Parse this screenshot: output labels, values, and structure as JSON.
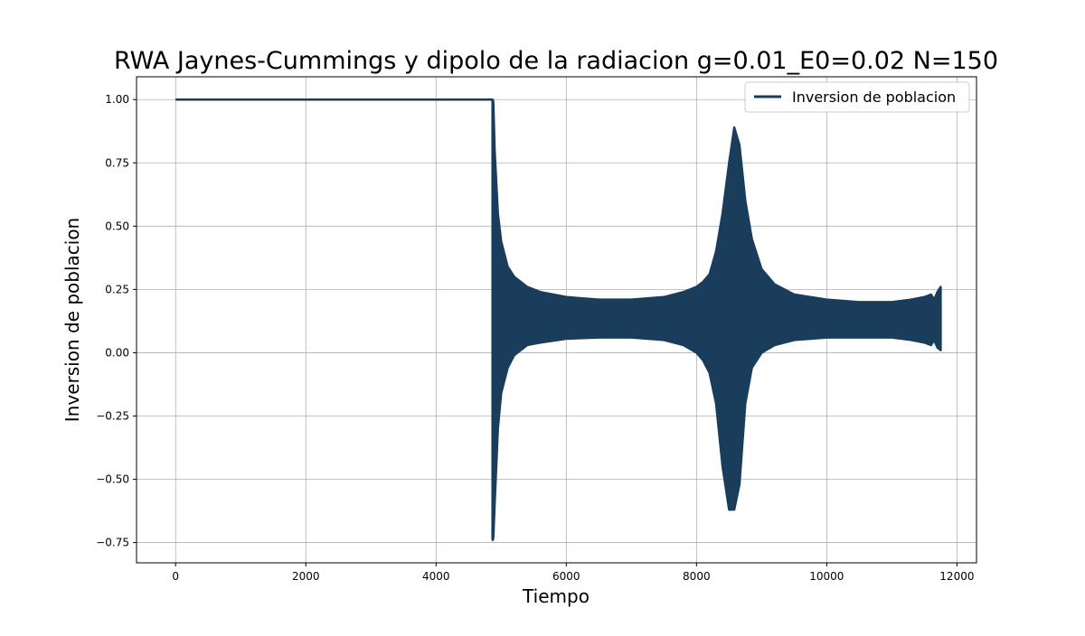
{
  "chart_data": {
    "type": "line",
    "title": "RWA Jaynes-Cummings y dipolo de la radiacion g=0.01_E0=0.02 N=150",
    "xlabel": "Tiempo",
    "ylabel": "Inversion de poblacion",
    "xlim": [
      -600,
      12300
    ],
    "ylim": [
      -0.83,
      1.09
    ],
    "x_ticks": [
      0,
      2000,
      4000,
      6000,
      8000,
      10000,
      12000
    ],
    "x_tick_labels": [
      "0",
      "2000",
      "4000",
      "6000",
      "8000",
      "10000",
      "12000"
    ],
    "y_ticks": [
      -0.75,
      -0.5,
      -0.25,
      0.0,
      0.25,
      0.5,
      0.75,
      1.0
    ],
    "y_tick_labels": [
      "−0.75",
      "−0.50",
      "−0.25",
      "0.00",
      "0.25",
      "0.50",
      "0.75",
      "1.00"
    ],
    "grid": true,
    "legend_position": "top-right",
    "series": [
      {
        "name": "Inversion de poblacion",
        "color": "#1a3d5c",
        "constant_segment": {
          "x": [
            0,
            4870
          ],
          "y": 1.0
        },
        "envelope": {
          "x": [
            4870,
            4880,
            4900,
            4950,
            5000,
            5100,
            5200,
            5400,
            5600,
            6000,
            6500,
            7000,
            7500,
            7800,
            8000,
            8100,
            8200,
            8300,
            8400,
            8500,
            8580,
            8660,
            8750,
            8850,
            9000,
            9200,
            9500,
            10000,
            10500,
            11000,
            11300,
            11500,
            11600,
            11650,
            11700,
            11750
          ],
          "upper": [
            1.0,
            0.99,
            0.8,
            0.55,
            0.44,
            0.34,
            0.3,
            0.26,
            0.24,
            0.22,
            0.21,
            0.21,
            0.22,
            0.24,
            0.26,
            0.28,
            0.31,
            0.4,
            0.55,
            0.75,
            0.89,
            0.82,
            0.6,
            0.45,
            0.33,
            0.27,
            0.23,
            0.21,
            0.2,
            0.2,
            0.21,
            0.22,
            0.23,
            0.21,
            0.24,
            0.26
          ],
          "lower": [
            -0.74,
            -0.73,
            -0.6,
            -0.3,
            -0.16,
            -0.06,
            -0.01,
            0.03,
            0.04,
            0.055,
            0.06,
            0.06,
            0.05,
            0.03,
            0.0,
            -0.03,
            -0.08,
            -0.2,
            -0.45,
            -0.62,
            -0.62,
            -0.52,
            -0.2,
            -0.06,
            0.0,
            0.03,
            0.05,
            0.06,
            0.06,
            0.06,
            0.05,
            0.04,
            0.03,
            0.05,
            0.02,
            0.01
          ]
        }
      }
    ]
  }
}
